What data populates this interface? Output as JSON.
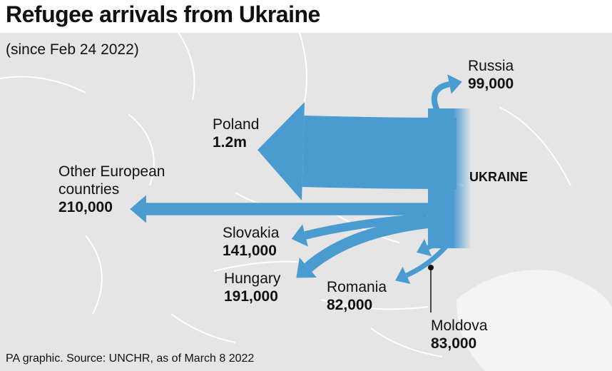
{
  "header": {
    "title": "Refugee arrivals from Ukraine",
    "subtitle": "(since Feb 24 2022)"
  },
  "origin": "UKRAINE",
  "flows": [
    {
      "name": "Russia",
      "value": 99000,
      "value_label": "99,000"
    },
    {
      "name": "Poland",
      "value": 1200000,
      "value_label": "1.2m"
    },
    {
      "name": "Other European countries",
      "value": 210000,
      "value_label": "210,000"
    },
    {
      "name": "Slovakia",
      "value": 141000,
      "value_label": "141,000"
    },
    {
      "name": "Hungary",
      "value": 191000,
      "value_label": "191,000"
    },
    {
      "name": "Romania",
      "value": 82000,
      "value_label": "82,000"
    },
    {
      "name": "Moldova",
      "value": 83000,
      "value_label": "83,000"
    }
  ],
  "source": "PA graphic. Source: UNCHR, as of March 8 2022"
}
